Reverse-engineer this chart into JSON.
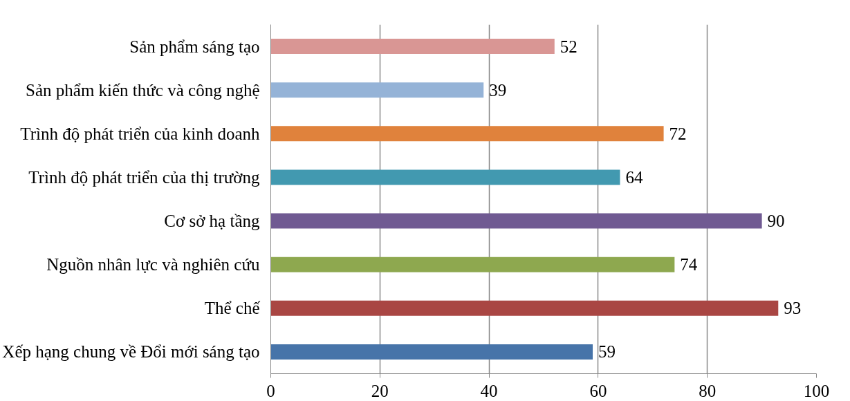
{
  "chart_data": {
    "type": "bar",
    "orientation": "horizontal",
    "categories": [
      "Sản phẩm sáng tạo",
      "Sản phẩm kiến thức và công nghệ",
      "Trình độ phát triển của kinh doanh",
      "Trình độ phát triển của thị trường",
      "Cơ sở hạ tầng",
      "Nguồn nhân lực và nghiên cứu",
      "Thể chế",
      "Xếp hạng chung về Đổi mới sáng tạo"
    ],
    "values": [
      52,
      39,
      72,
      64,
      90,
      74,
      93,
      59
    ],
    "colors": [
      "#d99694",
      "#95b3d7",
      "#e0823c",
      "#4299b0",
      "#705a92",
      "#8ea84f",
      "#a94643",
      "#4774a9"
    ],
    "xlim": [
      0,
      100
    ],
    "xticks": [
      0,
      20,
      40,
      60,
      80,
      100
    ],
    "grid": "x",
    "data_labels": true
  }
}
